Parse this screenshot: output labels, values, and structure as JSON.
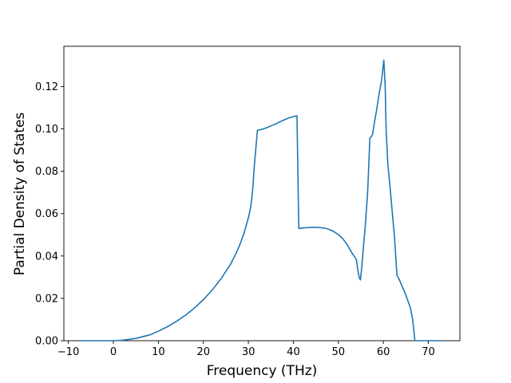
{
  "chart_data": {
    "type": "line",
    "title": "",
    "xlabel": "Frequency (THz)",
    "ylabel": "Partial Density of States",
    "xlim": [
      -11,
      77
    ],
    "ylim": [
      0.0,
      0.139
    ],
    "xticks": [
      -10,
      0,
      10,
      20,
      30,
      40,
      50,
      60,
      70
    ],
    "xtick_labels": [
      "−10",
      "0",
      "10",
      "20",
      "30",
      "40",
      "50",
      "60",
      "70"
    ],
    "yticks": [
      0.0,
      0.02,
      0.04,
      0.06,
      0.08,
      0.1,
      0.12
    ],
    "ytick_labels": [
      "0.00",
      "0.02",
      "0.04",
      "0.06",
      "0.08",
      "0.10",
      "0.12"
    ],
    "grid": false,
    "legend": "none",
    "series": [
      {
        "color": "#1f77b4",
        "x": [
          -7,
          -3,
          0,
          2,
          5,
          8,
          10,
          12,
          14,
          16,
          18,
          20,
          22,
          24,
          26,
          27,
          28,
          29,
          30,
          30.5,
          30.8,
          31.0,
          31.3,
          32,
          33,
          34,
          35,
          36,
          37,
          38,
          39,
          40,
          40.6,
          40.8,
          41.2,
          42,
          43,
          44,
          45,
          46,
          47,
          48,
          49,
          50,
          51,
          52,
          53,
          54,
          54.3,
          54.6,
          54.9,
          55.2,
          55.6,
          56,
          56.5,
          57.0,
          57.3,
          57.6,
          58,
          58.5,
          59,
          59.6,
          60.1,
          60.4,
          60.6,
          61,
          61.5,
          62,
          62.5,
          63,
          63.5,
          64,
          65,
          66,
          66.5,
          67,
          70,
          73
        ],
        "y": [
          0.0,
          0.0,
          0.0,
          0.0002,
          0.0011,
          0.0027,
          0.0045,
          0.0066,
          0.0091,
          0.012,
          0.0154,
          0.0194,
          0.024,
          0.0295,
          0.036,
          0.0401,
          0.0448,
          0.0505,
          0.058,
          0.063,
          0.068,
          0.0725,
          0.082,
          0.0993,
          0.0998,
          0.1005,
          0.1014,
          0.1023,
          0.1033,
          0.1043,
          0.1052,
          0.1058,
          0.1061,
          0.1062,
          0.053,
          0.0532,
          0.0534,
          0.0535,
          0.0535,
          0.0534,
          0.0531,
          0.0525,
          0.0515,
          0.0501,
          0.0481,
          0.0452,
          0.0415,
          0.0383,
          0.0336,
          0.03,
          0.0287,
          0.035,
          0.045,
          0.055,
          0.07,
          0.0958,
          0.0962,
          0.0974,
          0.103,
          0.109,
          0.116,
          0.123,
          0.1325,
          0.12,
          0.1,
          0.083,
          0.072,
          0.06,
          0.048,
          0.031,
          0.029,
          0.0265,
          0.0215,
          0.0155,
          0.01,
          0.0,
          0.0,
          0.0
        ]
      }
    ]
  }
}
